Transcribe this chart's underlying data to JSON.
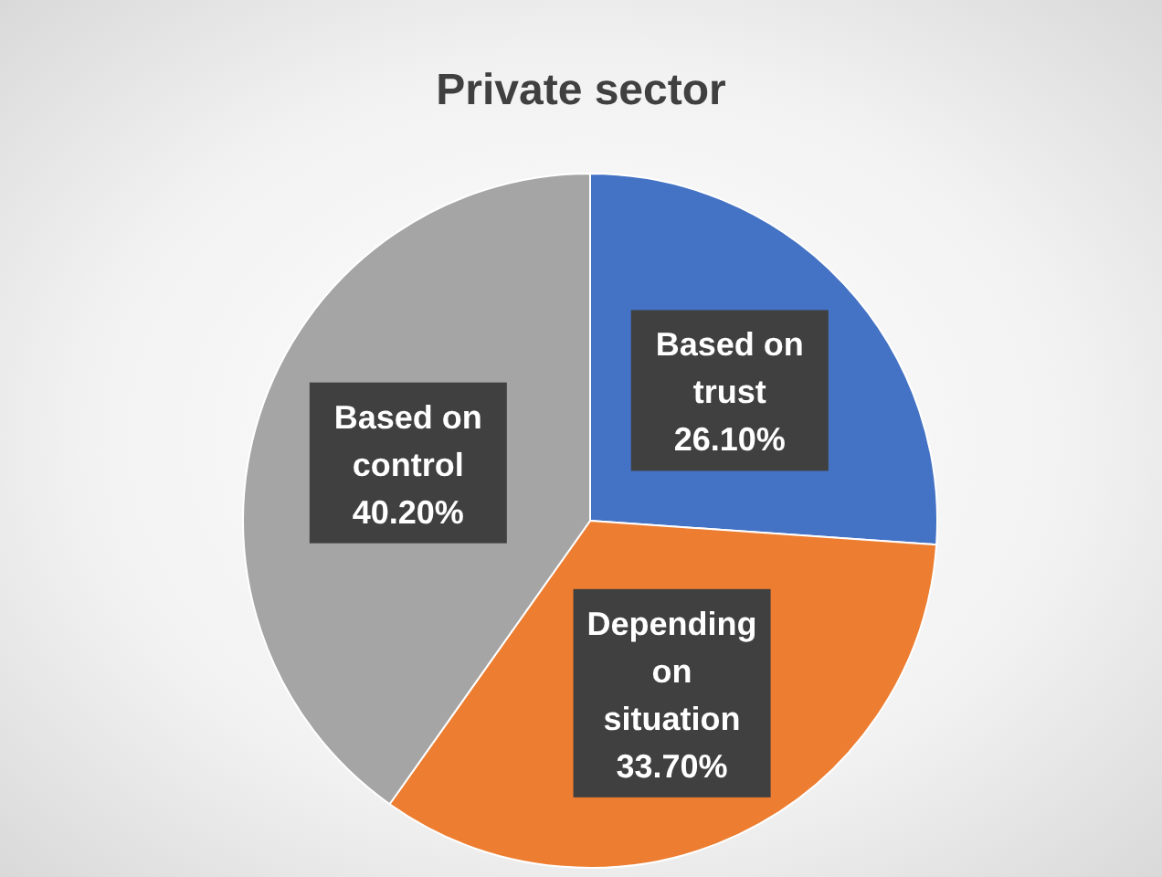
{
  "chart_data": {
    "type": "pie",
    "title": "Private sector",
    "categories": [
      "Based on trust",
      "Depending on situation",
      "Based on control"
    ],
    "values": [
      26.1,
      33.7,
      40.2
    ],
    "colors": [
      "#4472c4",
      "#ed7d31",
      "#a5a5a5"
    ],
    "value_labels": [
      "26.10%",
      "33.70%",
      "40.20%"
    ],
    "legend": false
  }
}
